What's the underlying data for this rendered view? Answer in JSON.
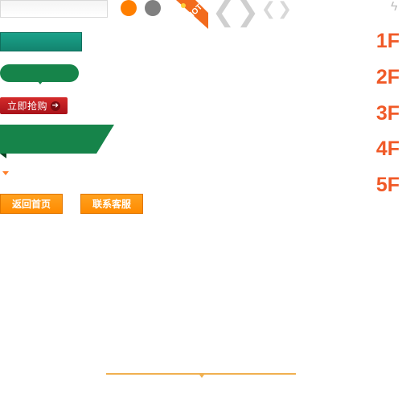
{
  "hot_badge": {
    "text": "HOT!"
  },
  "icons": {
    "chevron_left_big": "chevron-left-icon",
    "chevron_right_big": "chevron-right-icon",
    "chevron_left_small": "chevron-left-icon",
    "chevron_right_small": "chevron-right-icon",
    "bolt": "lightning-icon",
    "buy_arrow": "arrow-right-icon"
  },
  "buttons": {
    "buy_now": "立即抢购",
    "back_home": "返回首页",
    "contact_service": "联系客服"
  },
  "floors": [
    "1F",
    "2F",
    "3F",
    "4F",
    "5F"
  ],
  "colors": {
    "orange_dot": "#ff7f00",
    "gray_dot": "#808080",
    "teal": "#13846f",
    "green": "#16844a",
    "red": "#b91c22",
    "orange_button": "#ff8f00",
    "floor_label": "#f05a28",
    "divider": "#f0b050"
  }
}
